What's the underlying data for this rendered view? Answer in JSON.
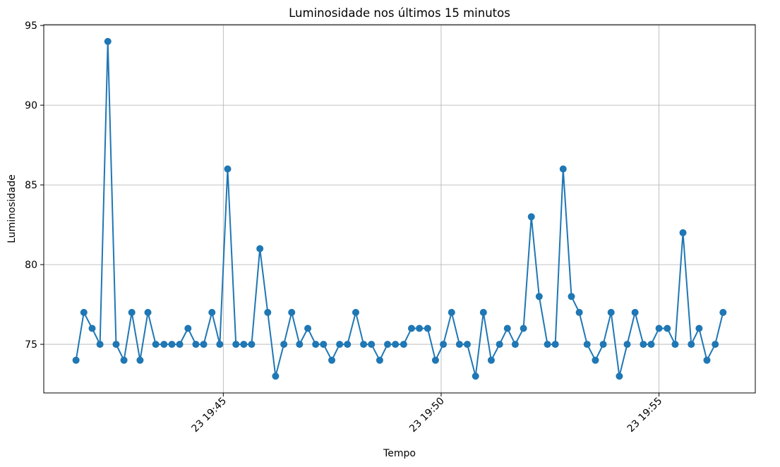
{
  "chart_data": {
    "type": "line",
    "title": "Luminosidade nos últimos 15 minutos",
    "xlabel": "Tempo",
    "ylabel": "Luminosidade",
    "x": [
      41.62,
      41.8,
      41.99,
      42.17,
      42.35,
      42.54,
      42.72,
      42.9,
      43.09,
      43.27,
      43.45,
      43.64,
      43.82,
      44.0,
      44.19,
      44.37,
      44.55,
      44.74,
      44.92,
      45.1,
      45.29,
      45.47,
      45.65,
      45.84,
      46.02,
      46.2,
      46.39,
      46.57,
      46.75,
      46.94,
      47.12,
      47.3,
      47.49,
      47.67,
      47.85,
      48.04,
      48.22,
      48.4,
      48.59,
      48.77,
      48.95,
      49.14,
      49.32,
      49.5,
      49.69,
      49.87,
      50.05,
      50.24,
      50.42,
      50.6,
      50.79,
      50.97,
      51.15,
      51.34,
      51.52,
      51.7,
      51.89,
      52.07,
      52.25,
      52.44,
      52.62,
      52.8,
      52.99,
      53.17,
      53.35,
      53.54,
      53.72,
      53.9,
      54.09,
      54.27,
      54.45,
      54.64,
      54.82,
      55.0,
      55.19,
      55.37,
      55.55,
      55.74,
      55.92,
      56.1,
      56.29,
      56.47
    ],
    "series": [
      {
        "name": "Luminosidade",
        "color": "#1f77b4",
        "values": [
          74,
          77,
          76,
          75,
          94,
          75,
          74,
          77,
          74,
          77,
          75,
          75,
          75,
          75,
          76,
          75,
          75,
          77,
          75,
          86,
          75,
          75,
          75,
          81,
          77,
          73,
          75,
          77,
          75,
          76,
          75,
          75,
          74,
          75,
          75,
          77,
          75,
          75,
          74,
          75,
          75,
          75,
          76,
          76,
          76,
          74,
          75,
          77,
          75,
          75,
          73,
          77,
          74,
          75,
          76,
          75,
          76,
          83,
          78,
          75,
          75,
          86,
          78,
          77,
          75,
          74,
          75,
          77,
          73,
          75,
          77,
          75,
          75,
          76,
          76,
          75,
          82,
          75,
          76,
          74,
          75,
          77
        ]
      }
    ],
    "xlim": [
      40.88,
      57.21
    ],
    "xticks": [
      {
        "value": 45,
        "label": "23 19:45"
      },
      {
        "value": 50,
        "label": "23 19:50"
      },
      {
        "value": 55,
        "label": "23 19:55"
      }
    ],
    "ylim": [
      71.95,
      95.05
    ],
    "yticks": [
      75,
      80,
      85,
      90,
      95
    ],
    "grid": true
  }
}
